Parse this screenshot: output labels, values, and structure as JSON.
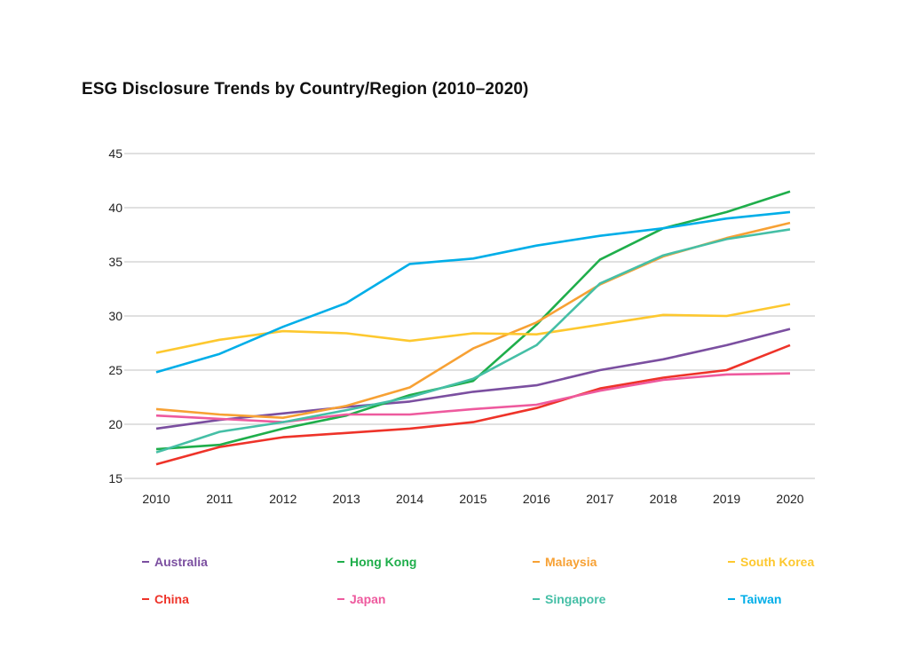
{
  "chart_data": {
    "type": "line",
    "title": "ESG Disclosure Trends by Country/Region (2010–2020)",
    "xlabel": "",
    "ylabel": "",
    "x": [
      "2010",
      "2011",
      "2012",
      "2013",
      "2014",
      "2015",
      "2016",
      "2017",
      "2018",
      "2019",
      "2020"
    ],
    "ylim": [
      15,
      45
    ],
    "yticks": [
      "15",
      "20",
      "25",
      "30",
      "35",
      "40",
      "45"
    ],
    "grid": "horizontal",
    "legend_position": "bottom",
    "series": [
      {
        "name": "Australia",
        "color": "#7b4fa0",
        "values": [
          19.6,
          20.4,
          21.0,
          21.6,
          22.1,
          23.0,
          23.6,
          25.0,
          26.0,
          27.3,
          28.8
        ]
      },
      {
        "name": "Hong Kong",
        "color": "#1fae4b",
        "values": [
          17.7,
          18.1,
          19.6,
          20.8,
          22.7,
          24.0,
          29.2,
          35.2,
          38.1,
          39.6,
          41.5
        ]
      },
      {
        "name": "Malaysia",
        "color": "#f7a134",
        "values": [
          21.4,
          20.9,
          20.6,
          21.7,
          23.4,
          27.0,
          29.4,
          32.9,
          35.5,
          37.2,
          38.6
        ]
      },
      {
        "name": "South Korea",
        "color": "#fdc82f",
        "values": [
          26.6,
          27.8,
          28.6,
          28.4,
          27.7,
          28.4,
          28.3,
          29.2,
          30.1,
          30.0,
          31.1
        ]
      },
      {
        "name": "China",
        "color": "#ee3329",
        "values": [
          16.3,
          17.9,
          18.8,
          19.2,
          19.6,
          20.2,
          21.5,
          23.3,
          24.3,
          25.0,
          27.3
        ]
      },
      {
        "name": "Japan",
        "color": "#ee5a9e",
        "values": [
          20.8,
          20.5,
          20.2,
          20.9,
          20.9,
          21.4,
          21.8,
          23.1,
          24.1,
          24.6,
          24.7
        ]
      },
      {
        "name": "Singapore",
        "color": "#45bfa6",
        "values": [
          17.4,
          19.3,
          20.2,
          21.3,
          22.5,
          24.2,
          27.3,
          33.0,
          35.6,
          37.1,
          38.0
        ]
      },
      {
        "name": "Taiwan",
        "color": "#00aee8",
        "values": [
          24.8,
          26.5,
          29.0,
          31.2,
          34.8,
          35.3,
          36.5,
          37.4,
          38.1,
          39.0,
          39.6
        ]
      }
    ]
  }
}
